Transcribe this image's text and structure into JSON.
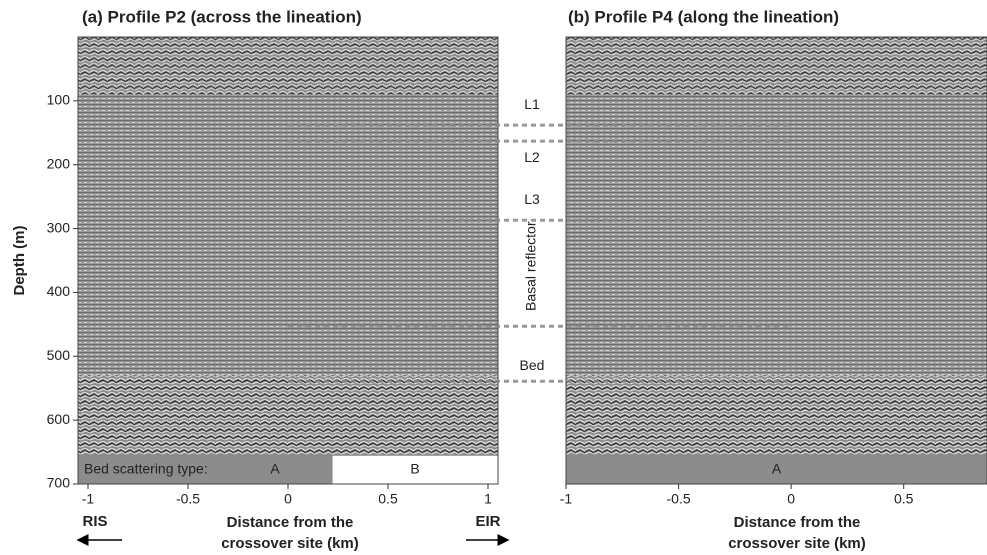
{
  "chart_data": [
    {
      "type": "image",
      "title": "(a) Profile P2 (across the lineation)",
      "xlabel": [
        "Distance from the",
        "crossover site (km)"
      ],
      "ylabel": "Depth (m)",
      "xlim": [
        -1.05,
        1.05
      ],
      "ylim": [
        0,
        700
      ],
      "xticks": [
        -1,
        -0.5,
        0,
        0.5,
        1
      ],
      "yticks": [
        100,
        200,
        300,
        400,
        500,
        600,
        700
      ],
      "scatter_label": "Bed scattering type:",
      "scatter_bar": [
        {
          "label": "A",
          "from": -1.05,
          "to": 0.22,
          "color": "#8c8c8c"
        },
        {
          "label": "B",
          "from": 0.22,
          "to": 1.05,
          "color": "#ffffff"
        }
      ],
      "arrows": {
        "left": "RIS",
        "right": "EIR"
      }
    },
    {
      "type": "image",
      "title": "(b) Profile P4 (along the lineation)",
      "xlabel": [
        "Distance from the",
        "crossover site (km)"
      ],
      "xlim": [
        -1.0,
        0.87
      ],
      "ylim": [
        0,
        700
      ],
      "xticks": [
        -1,
        -0.5,
        0,
        0.5
      ],
      "scatter_bar": [
        {
          "label": "A",
          "from": -1.0,
          "to": 0.87,
          "color": "#8c8c8c"
        }
      ]
    }
  ],
  "reflectors": {
    "x_start": 0,
    "x_end": 0,
    "items": [
      {
        "label": "L1",
        "depth": 138
      },
      {
        "label": "L2",
        "depth": 163
      },
      {
        "label": "L3",
        "depth": 287
      },
      {
        "label": "Basal reflector",
        "depth": 453
      },
      {
        "label": "Bed",
        "depth": 539
      }
    ]
  }
}
